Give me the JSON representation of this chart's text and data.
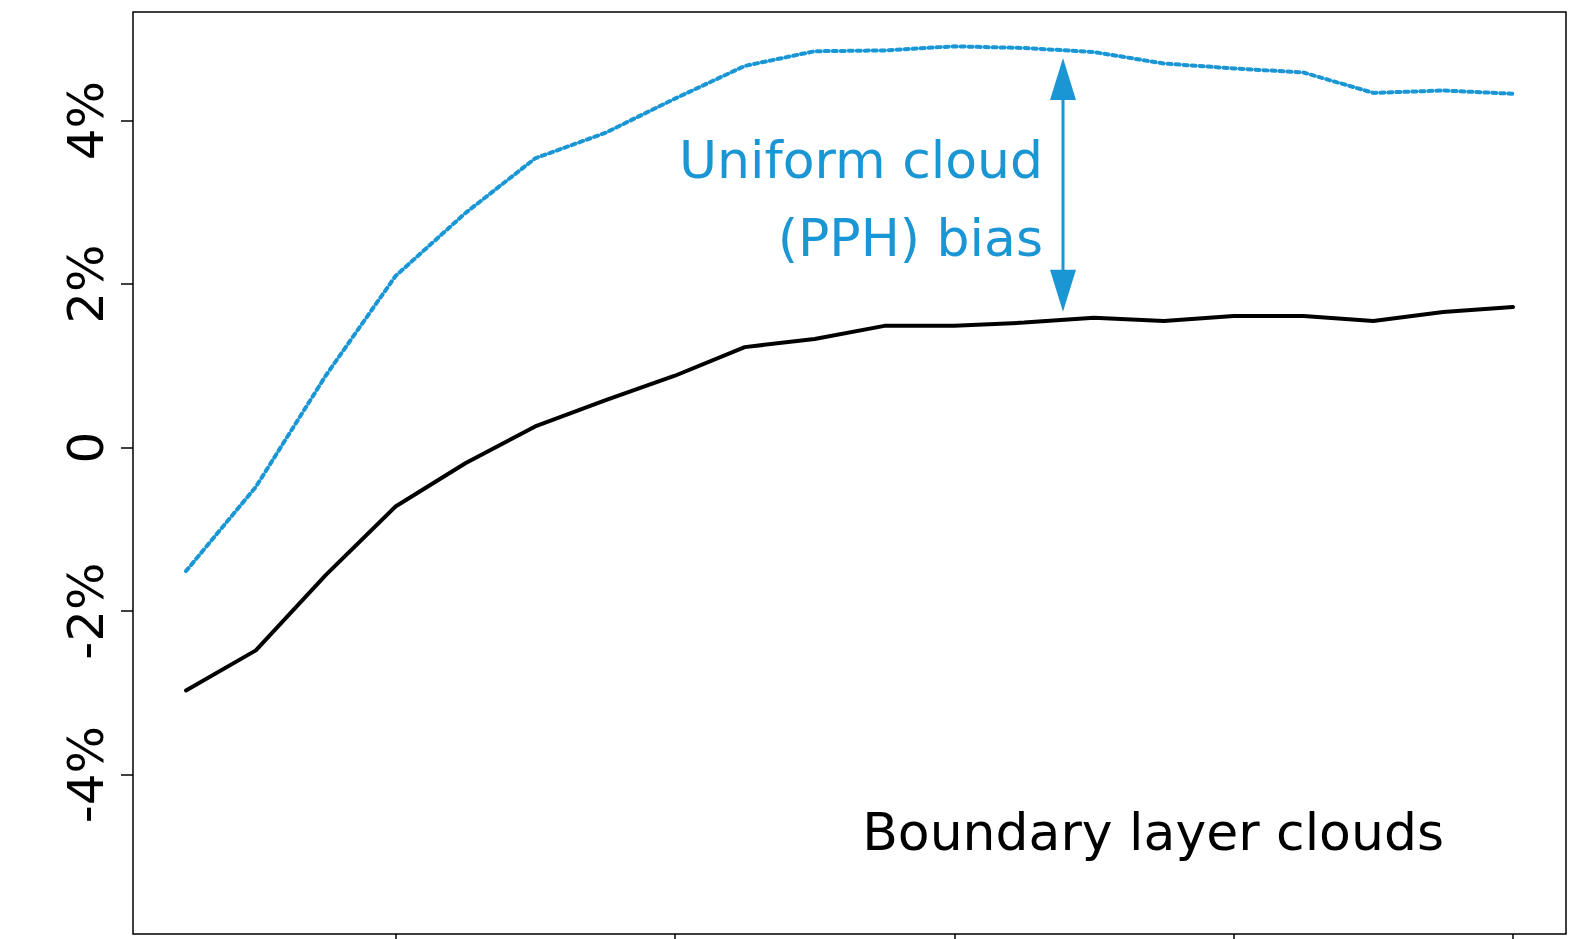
{
  "chart_data": {
    "type": "line",
    "categories": [
      null,
      null,
      null,
      null,
      null,
      null,
      null,
      null,
      null,
      null,
      null,
      null,
      null,
      null,
      null,
      null,
      null,
      null,
      null,
      null
    ],
    "series": [
      {
        "color": "#000000",
        "line_style": "solid",
        "values": [
          -2.97,
          -2.48,
          -1.56,
          -0.72,
          -0.19,
          0.26,
          0.58,
          0.88,
          1.23,
          1.33,
          1.49,
          1.49,
          1.53,
          1.59,
          1.55,
          1.61,
          1.61,
          1.55,
          1.66,
          1.72
        ]
      },
      {
        "color": "#1a96d4",
        "line_style": "dotted",
        "values": [
          -1.51,
          -0.48,
          0.88,
          2.1,
          2.87,
          3.54,
          3.85,
          4.27,
          4.67,
          4.85,
          4.86,
          4.91,
          4.89,
          4.84,
          4.7,
          4.64,
          4.59,
          4.34,
          4.37,
          4.33
        ]
      }
    ],
    "ylim": [
      -5.95,
      5.33
    ],
    "yticks": [
      {
        "value": -4,
        "label": "-4%"
      },
      {
        "value": -2,
        "label": "-2%"
      },
      {
        "value": 0,
        "label": "0"
      },
      {
        "value": 2,
        "label": "2%"
      },
      {
        "value": 4,
        "label": "4%"
      }
    ],
    "tick_labels": "y",
    "marker": "none",
    "annotations": [
      "Uniform cloud (PPH) bias",
      "Boundary layer clouds"
    ]
  }
}
